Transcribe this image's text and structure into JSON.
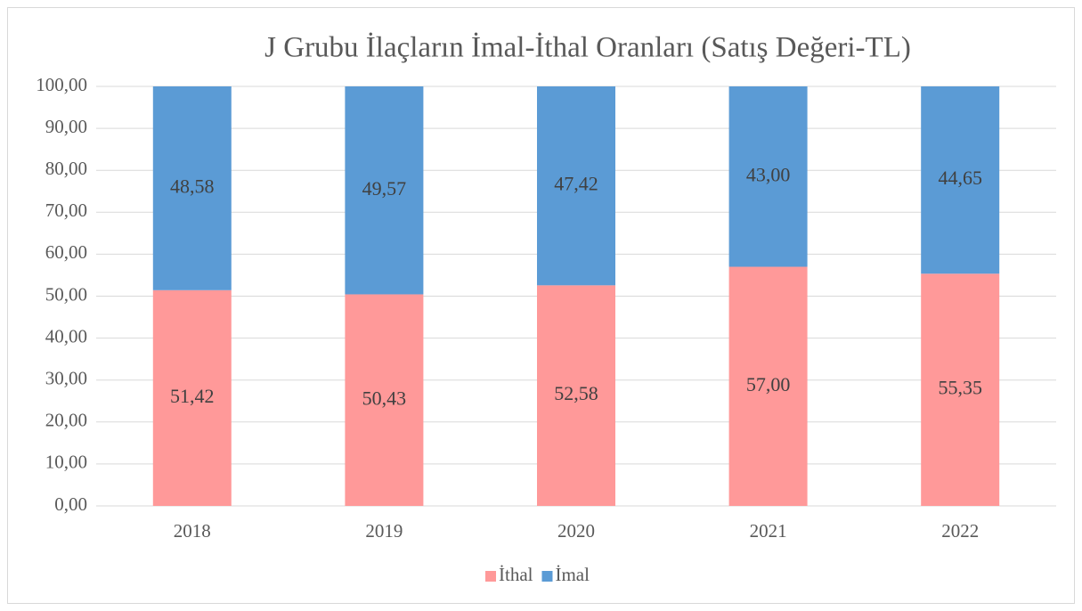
{
  "chart_data": {
    "type": "bar",
    "stacked": true,
    "title": "J Grubu İlaçların İmal-İthal Oranları (Satış Değeri-TL)",
    "categories": [
      "2018",
      "2019",
      "2020",
      "2021",
      "2022"
    ],
    "series": [
      {
        "name": "İthal",
        "color": "#ff9999",
        "values": [
          51.42,
          50.43,
          52.58,
          57.0,
          55.35
        ],
        "value_labels": [
          "51,42",
          "50,43",
          "52,58",
          "57,00",
          "55,35"
        ]
      },
      {
        "name": "İmal",
        "color": "#5b9bd5",
        "values": [
          48.58,
          49.57,
          47.42,
          43.0,
          44.65
        ],
        "value_labels": [
          "48,58",
          "49,57",
          "47,42",
          "43,00",
          "44,65"
        ]
      }
    ],
    "ylim": [
      0,
      100
    ],
    "yticks": [
      {
        "value": 0,
        "label": "0,00"
      },
      {
        "value": 10,
        "label": "10,00"
      },
      {
        "value": 20,
        "label": "20,00"
      },
      {
        "value": 30,
        "label": "30,00"
      },
      {
        "value": 40,
        "label": "40,00"
      },
      {
        "value": 50,
        "label": "50,00"
      },
      {
        "value": 60,
        "label": "60,00"
      },
      {
        "value": 70,
        "label": "70,00"
      },
      {
        "value": 80,
        "label": "80,00"
      },
      {
        "value": 90,
        "label": "90,00"
      },
      {
        "value": 100,
        "label": "100,00"
      }
    ],
    "grid": true,
    "legend": "bottom"
  }
}
